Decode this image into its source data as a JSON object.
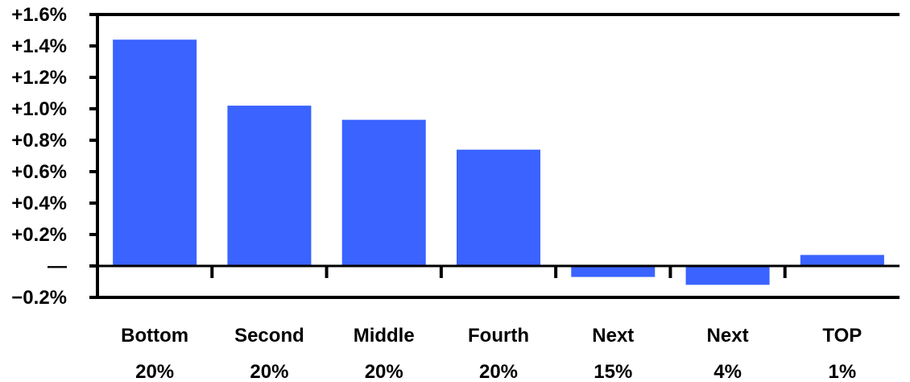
{
  "chart_data": {
    "type": "bar",
    "categories": [
      [
        "Bottom",
        "20%"
      ],
      [
        "Second",
        "20%"
      ],
      [
        "Middle",
        "20%"
      ],
      [
        "Fourth",
        "20%"
      ],
      [
        "Next",
        "15%"
      ],
      [
        "Next",
        "4%"
      ],
      [
        "TOP",
        "1%"
      ]
    ],
    "values": [
      1.44,
      1.02,
      0.93,
      0.74,
      -0.07,
      -0.12,
      0.07
    ],
    "ylim": [
      -0.2,
      1.6
    ],
    "yticks": [
      -0.2,
      0.0,
      0.2,
      0.4,
      0.6,
      0.8,
      1.0,
      1.2,
      1.4,
      1.6
    ],
    "ytick_labels": [
      "−0.2%",
      "—",
      "+0.2%",
      "+0.4%",
      "+0.6%",
      "+0.8%",
      "+1.0%",
      "+1.2%",
      "+1.4%",
      "+1.6%"
    ],
    "bar_color": "#3a63ff",
    "grid": false,
    "legend": "none",
    "title": "",
    "xlabel": "",
    "ylabel": ""
  }
}
